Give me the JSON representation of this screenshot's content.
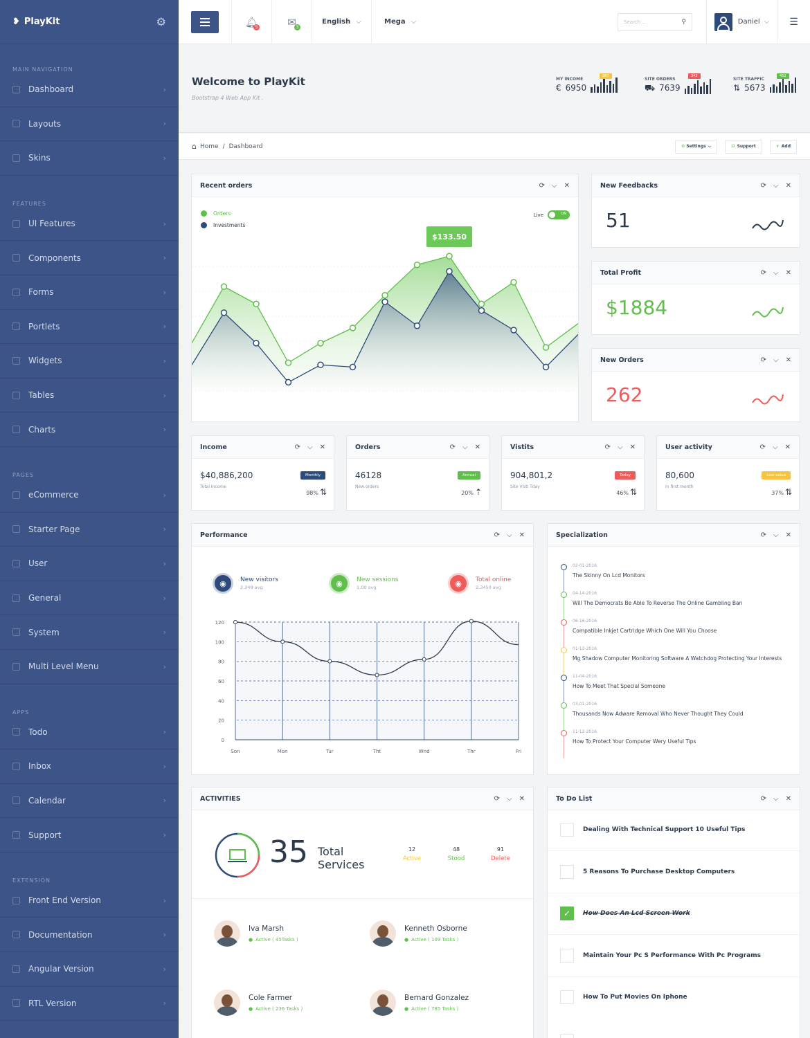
{
  "app": {
    "name": "PlayKit"
  },
  "sidebar": {
    "sections": [
      {
        "title": "MAIN NAVIGATION",
        "items": [
          "Dashboard",
          "Layouts",
          "Skins"
        ]
      },
      {
        "title": "FEATURES",
        "items": [
          "UI Features",
          "Components",
          "Forms",
          "Portlets",
          "Widgets",
          "Tables",
          "Charts"
        ]
      },
      {
        "title": "PAGES",
        "items": [
          "eCommerce",
          "Starter Page",
          "User",
          "General",
          "System",
          "Multi Level Menu"
        ]
      },
      {
        "title": "APPS",
        "items": [
          "Todo",
          "Inbox",
          "Calendar",
          "Support"
        ]
      },
      {
        "title": "EXTENSION",
        "items": [
          "Front End Version",
          "Documentation",
          "Angular Version",
          "RTL Version"
        ]
      }
    ]
  },
  "topbar": {
    "notif_count": "5",
    "mail_count": "3",
    "language": "English",
    "mega": "Mega",
    "search_placeholder": "Search ...",
    "user": "Daniel"
  },
  "header": {
    "title": "Welcome to PlayKit",
    "subtitle": "Bootstrap 4 Web App Kit .",
    "stats": [
      {
        "label": "MY INCOME",
        "symbol": "€",
        "value": "6950",
        "tag": "987",
        "color": "#f5c542"
      },
      {
        "label": "SITE ORDERS",
        "symbol": "⛟",
        "value": "7639",
        "tag": "345",
        "color": "#ef5a5a"
      },
      {
        "label": "SITE TRAFFIC",
        "symbol": "⇅",
        "value": "5673",
        "tag": "452",
        "color": "#5fbf4a"
      }
    ]
  },
  "breadcrumb": {
    "home": "Home",
    "current": "Dashboard",
    "settings": "Settings",
    "support": "Support",
    "add": "Add"
  },
  "recent_orders": {
    "title": "Recent orders",
    "legend_orders": "Orders",
    "legend_investments": "Investments",
    "live": "Live",
    "toggle": "ON",
    "tooltip": "$133.50"
  },
  "chart_data": {
    "type": "area",
    "series": [
      {
        "name": "Orders",
        "values": [
          22,
          48,
          40,
          13,
          22,
          29,
          44,
          58,
          62,
          40,
          50,
          20,
          31
        ]
      },
      {
        "name": "Investments",
        "values": [
          12,
          36,
          22,
          4,
          12,
          11,
          41,
          30,
          55,
          37,
          28,
          11,
          26
        ]
      }
    ]
  },
  "mini": [
    {
      "title": "New Feedbacks",
      "value": "51",
      "color": "#2d3a4b"
    },
    {
      "title": "Total Profit",
      "value": "$1884",
      "color": "#5fbf4a"
    },
    {
      "title": "New Orders",
      "value": "262",
      "color": "#ef5a5a"
    }
  ],
  "smalls": [
    {
      "title": "Income",
      "value": "$40,886,200",
      "sub": "Total income",
      "pill": "Monthly",
      "pill_color": "#2d4a7a",
      "pct": "98%",
      "arrow": "⇅"
    },
    {
      "title": "Orders",
      "value": "46128",
      "sub": "New orders",
      "pill": "Annual",
      "pill_color": "#5fbf4a",
      "pct": "20%",
      "arrow": "⇡"
    },
    {
      "title": "Vistits",
      "value": "904,801,2",
      "sub": "Site Visti Tday",
      "pill": "Today",
      "pill_color": "#ef5a5a",
      "pct": "46%",
      "arrow": "⇅"
    },
    {
      "title": "User activity",
      "value": "80,600",
      "sub": "In first month",
      "pill": "Low value",
      "pill_color": "#f5c542",
      "pct": "37%",
      "arrow": "⇅"
    }
  ],
  "performance": {
    "title": "Performance",
    "visitors": "New visitors",
    "visitors_avg": "2,349 avg",
    "sessions": "New sessions",
    "sessions_avg": "1,00 avg",
    "online": "Total online",
    "online_avg": "2,3450 avg",
    "yticks": [
      "120",
      "100",
      "80",
      "60",
      "40",
      "20",
      "0"
    ],
    "xticks": [
      "Son",
      "Mon",
      "Tur",
      "Tht",
      "Wnd",
      "Thr",
      "Fri"
    ]
  },
  "perf_chart": {
    "type": "line",
    "x": [
      "Son",
      "Mon",
      "Tur",
      "Tht",
      "Wnd",
      "Thr",
      "Fri"
    ],
    "values": [
      120,
      100,
      80,
      66,
      82,
      121,
      97
    ],
    "ylim": [
      0,
      120
    ]
  },
  "specialization": {
    "title": "Specialization",
    "items": [
      {
        "date": "02-01-2016",
        "text": "The Skinny On Lcd Monitors",
        "color": "#2d4a7a"
      },
      {
        "date": "04-14-2016",
        "text": "Will The Democrats Be Able To Reverse The Online Gambling Ban",
        "color": "#5fbf4a"
      },
      {
        "date": "06-16-2016",
        "text": "Compatible Inkjet Cartridge Which One Will You Choose",
        "color": "#ef5a5a"
      },
      {
        "date": "01-13-2016",
        "text": "Mg Shadow Computer Monitoring Software A Watchdog Protecting Your Interests",
        "color": "#f5c542"
      },
      {
        "date": "11-04-2016",
        "text": "How To Meet That Special Someone",
        "color": "#2d4a7a"
      },
      {
        "date": "03-01-2016",
        "text": "Thousands Now Adware Removal Who Never Thought They Could",
        "color": "#5fbf4a"
      },
      {
        "date": "11-12-2016",
        "text": "How To Protect Your Computer Wery Useful Tips",
        "color": "#ef5a5a"
      }
    ]
  },
  "activities": {
    "title": "ACTIVITIES",
    "count": "35",
    "label1": "Total",
    "label2": "Services",
    "stats": [
      {
        "n": "12",
        "l": "Active",
        "color": "#f5c542"
      },
      {
        "n": "48",
        "l": "Stood",
        "color": "#5fbf4a"
      },
      {
        "n": "91",
        "l": "Delete",
        "color": "#ef5a5a"
      }
    ],
    "people": [
      {
        "name": "Iva Marsh",
        "status": "Active ( 45Tasks )"
      },
      {
        "name": "Kenneth Osborne",
        "status": "Active ( 109 Tasks )"
      },
      {
        "name": "Cole Farmer",
        "status": "Active ( 236 Tasks )"
      },
      {
        "name": "Bernard Gonzalez",
        "status": "Active ( 785 Tasks )"
      }
    ]
  },
  "todo": {
    "title": "To Do List",
    "items": [
      "Dealing With Technical Support 10 Useful Tips",
      "5 Reasons To Purchase Desktop Computers",
      "How Does An Lcd Screen Work",
      "Maintain Your Pc S Performance With Pc Programs",
      "How To Put Movies On Iphone"
    ]
  }
}
